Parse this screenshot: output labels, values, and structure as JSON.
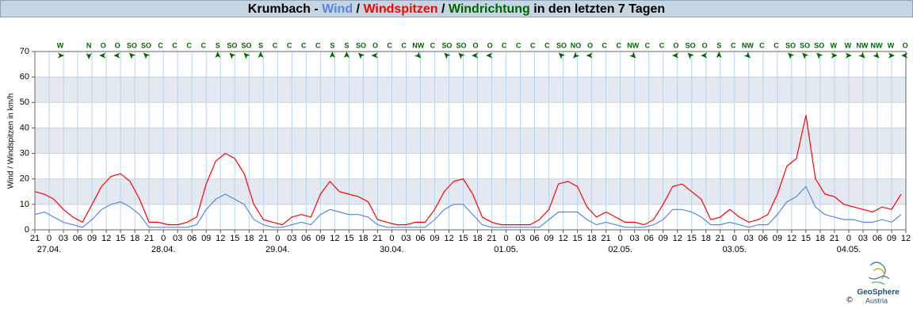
{
  "chart_data": {
    "type": "line",
    "title_parts": [
      "Krumbach - ",
      " / ",
      " / ",
      " in den letzten 7 Tagen"
    ],
    "direction_name": "Windrichtung",
    "direction_color": "#006400",
    "ylabel": "Wind / Windspitzen in km/h",
    "ylim": [
      0,
      70
    ],
    "yticks": [
      0,
      10,
      20,
      30,
      40,
      50,
      60,
      70
    ],
    "bands": true,
    "grid": true,
    "xlim": [
      0,
      183
    ],
    "xticks": [
      {
        "value": 0,
        "label": "21"
      },
      {
        "value": 3,
        "label": "0"
      },
      {
        "value": 6,
        "label": "03"
      },
      {
        "value": 9,
        "label": "06"
      },
      {
        "value": 12,
        "label": "09"
      },
      {
        "value": 15,
        "label": "12"
      },
      {
        "value": 18,
        "label": "15"
      },
      {
        "value": 21,
        "label": "18"
      },
      {
        "value": 24,
        "label": "21"
      },
      {
        "value": 27,
        "label": "0"
      },
      {
        "value": 30,
        "label": "03"
      },
      {
        "value": 33,
        "label": "06"
      },
      {
        "value": 36,
        "label": "09"
      },
      {
        "value": 39,
        "label": "12"
      },
      {
        "value": 42,
        "label": "15"
      },
      {
        "value": 45,
        "label": "18"
      },
      {
        "value": 48,
        "label": "21"
      },
      {
        "value": 51,
        "label": "0"
      },
      {
        "value": 54,
        "label": "03"
      },
      {
        "value": 57,
        "label": "06"
      },
      {
        "value": 60,
        "label": "09"
      },
      {
        "value": 63,
        "label": "12"
      },
      {
        "value": 66,
        "label": "15"
      },
      {
        "value": 69,
        "label": "18"
      },
      {
        "value": 72,
        "label": "21"
      },
      {
        "value": 75,
        "label": "0"
      },
      {
        "value": 78,
        "label": "03"
      },
      {
        "value": 81,
        "label": "06"
      },
      {
        "value": 84,
        "label": "09"
      },
      {
        "value": 87,
        "label": "12"
      },
      {
        "value": 90,
        "label": "15"
      },
      {
        "value": 93,
        "label": "18"
      },
      {
        "value": 96,
        "label": "21"
      },
      {
        "value": 99,
        "label": "0"
      },
      {
        "value": 102,
        "label": "03"
      },
      {
        "value": 105,
        "label": "06"
      },
      {
        "value": 108,
        "label": "09"
      },
      {
        "value": 111,
        "label": "12"
      },
      {
        "value": 114,
        "label": "15"
      },
      {
        "value": 117,
        "label": "18"
      },
      {
        "value": 120,
        "label": "21"
      },
      {
        "value": 123,
        "label": "0"
      },
      {
        "value": 126,
        "label": "03"
      },
      {
        "value": 129,
        "label": "06"
      },
      {
        "value": 132,
        "label": "09"
      },
      {
        "value": 135,
        "label": "12"
      },
      {
        "value": 138,
        "label": "15"
      },
      {
        "value": 141,
        "label": "18"
      },
      {
        "value": 144,
        "label": "21"
      },
      {
        "value": 147,
        "label": "0"
      },
      {
        "value": 150,
        "label": "03"
      },
      {
        "value": 153,
        "label": "06"
      },
      {
        "value": 156,
        "label": "09"
      },
      {
        "value": 159,
        "label": "12"
      },
      {
        "value": 162,
        "label": "15"
      },
      {
        "value": 165,
        "label": "18"
      },
      {
        "value": 168,
        "label": "21"
      },
      {
        "value": 171,
        "label": "0"
      },
      {
        "value": 174,
        "label": "03"
      },
      {
        "value": 177,
        "label": "06"
      },
      {
        "value": 180,
        "label": "09"
      },
      {
        "value": 183,
        "label": "12"
      }
    ],
    "date_ticks": [
      {
        "value": 3,
        "label": "27.04."
      },
      {
        "value": 27,
        "label": "28.04."
      },
      {
        "value": 51,
        "label": "29.04."
      },
      {
        "value": 75,
        "label": "30.04."
      },
      {
        "value": 99,
        "label": "01.05."
      },
      {
        "value": 123,
        "label": "02.05."
      },
      {
        "value": 147,
        "label": "03.05."
      },
      {
        "value": 171,
        "label": "04.05."
      }
    ],
    "x": [
      0,
      2,
      4,
      6,
      8,
      10,
      12,
      14,
      16,
      18,
      20,
      22,
      24,
      26,
      28,
      30,
      32,
      34,
      36,
      38,
      40,
      42,
      44,
      46,
      48,
      50,
      52,
      54,
      56,
      58,
      60,
      62,
      64,
      66,
      68,
      70,
      72,
      74,
      76,
      78,
      80,
      82,
      84,
      86,
      88,
      90,
      92,
      94,
      96,
      98,
      100,
      102,
      104,
      106,
      108,
      110,
      112,
      114,
      116,
      118,
      120,
      122,
      124,
      126,
      128,
      130,
      132,
      134,
      136,
      138,
      140,
      142,
      144,
      146,
      148,
      150,
      152,
      154,
      156,
      158,
      160,
      162,
      164,
      166,
      168,
      170,
      172,
      174,
      176,
      178,
      180,
      182
    ],
    "series": [
      {
        "name": "Windspitzen",
        "color": "#ff0000",
        "values": [
          15,
          14,
          12,
          8,
          5,
          3,
          10,
          17,
          21,
          22,
          19,
          12,
          3,
          3,
          2,
          2,
          3,
          5,
          18,
          27,
          30,
          28,
          22,
          10,
          4,
          3,
          2,
          5,
          6,
          5,
          14,
          19,
          15,
          14,
          13,
          11,
          4,
          3,
          2,
          2,
          3,
          3,
          8,
          15,
          19,
          20,
          14,
          5,
          3,
          2,
          2,
          2,
          2,
          4,
          8,
          18,
          19,
          17,
          9,
          5,
          7,
          5,
          3,
          3,
          2,
          4,
          10,
          17,
          18,
          15,
          12,
          4,
          5,
          8,
          5,
          3,
          4,
          6,
          14,
          25,
          28,
          45,
          20,
          14,
          13,
          10,
          9,
          8,
          7,
          9,
          8,
          14
        ]
      },
      {
        "name": "Wind",
        "color": "#5a86e0",
        "values": [
          6,
          7,
          5,
          3,
          2,
          1,
          4,
          8,
          10,
          11,
          9,
          6,
          1,
          1,
          1,
          1,
          1,
          2,
          8,
          12,
          14,
          12,
          10,
          4,
          2,
          1,
          1,
          2,
          3,
          2,
          6,
          8,
          7,
          6,
          6,
          5,
          2,
          1,
          1,
          1,
          1,
          1,
          4,
          8,
          10,
          10,
          6,
          2,
          1,
          1,
          1,
          1,
          1,
          1,
          4,
          7,
          7,
          7,
          4,
          2,
          3,
          2,
          1,
          1,
          1,
          2,
          4,
          8,
          8,
          7,
          5,
          2,
          2,
          3,
          2,
          1,
          2,
          2,
          6,
          11,
          13,
          17,
          9,
          6,
          5,
          4,
          4,
          3,
          3,
          4,
          3,
          6
        ]
      }
    ],
    "wind_direction": [
      "W",
      null,
      "N",
      "O",
      "O",
      "SO",
      "SO",
      "C",
      "C",
      "C",
      "C",
      "S",
      "SO",
      "SO",
      "S",
      "C",
      "C",
      "C",
      "C",
      "S",
      "S",
      "SO",
      "O",
      "C",
      "C",
      "NW",
      "C",
      "SO",
      "SO",
      "O",
      "O",
      "C",
      "C",
      "C",
      "C",
      "SO",
      "NO",
      "O",
      "C",
      "C",
      "NW",
      "C",
      "C",
      "O",
      "SO",
      "O",
      "S",
      "C",
      "NW",
      "C",
      "C",
      "SO",
      "SO",
      "SO",
      "W",
      "W",
      "NW",
      "NW",
      "W",
      "O"
    ],
    "logo": {
      "name": "GeoSphere",
      "sub": "Austria",
      "copyright": "©"
    }
  }
}
